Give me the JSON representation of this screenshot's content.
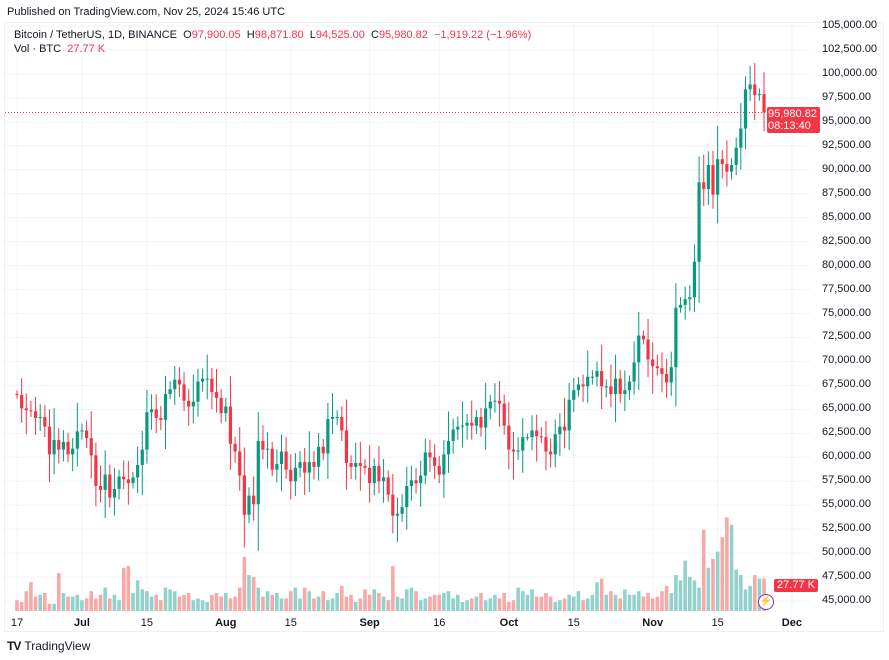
{
  "published": "Published on TradingView.com, Nov 25, 2024 15:46 UTC",
  "legend": {
    "symbol": "Bitcoin / TetherUS, 1D, BINANCE",
    "o_label": "O",
    "o": "97,900.05",
    "h_label": "H",
    "h": "98,871.80",
    "l_label": "L",
    "l": "94,525.00",
    "c_label": "C",
    "c": "95,980.82",
    "change": "−1,919.22 (−1.96%)",
    "vol_label": "Vol · BTC",
    "vol": "27.77 K"
  },
  "price_tag": {
    "price": "95,980.82",
    "countdown": "08:13:40"
  },
  "vol_tag": "27.77 K",
  "brand": "TradingView",
  "colors": {
    "up": "#089981",
    "down": "#f23645",
    "vol_up": "#92d2cc",
    "vol_down": "#f7a9a7",
    "grid": "#f0f3fa"
  },
  "chart_data": {
    "type": "candlestick",
    "symbol": "BTCUSDT",
    "start_date": "2024-06-17",
    "first_open": 66600,
    "closes": [
      66500,
      65100,
      64900,
      64800,
      64100,
      64200,
      63200,
      60300,
      61800,
      60800,
      61600,
      60300,
      60900,
      62700,
      62800,
      62000,
      60200,
      57000,
      56600,
      58200,
      55800,
      56700,
      58000,
      57700,
      57300,
      57900,
      59200,
      60800,
      64700,
      65000,
      64100,
      63900,
      66600,
      67100,
      68100,
      67600,
      65900,
      65300,
      65800,
      67900,
      68200,
      68200,
      66800,
      66200,
      64600,
      65300,
      61400,
      60600,
      58100,
      54000,
      56000,
      55100,
      61700,
      60800,
      60900,
      58700,
      59300,
      60600,
      58700,
      57500,
      58900,
      59500,
      58400,
      59500,
      59000,
      61100,
      60400,
      64000,
      64200,
      64200,
      62800,
      59400,
      59000,
      59400,
      59100,
      58900,
      57300,
      59100,
      57500,
      57900,
      56100,
      53900,
      54100,
      54800,
      57000,
      57600,
      57300,
      58100,
      60500,
      60000,
      59100,
      58200,
      60300,
      61700,
      62900,
      63200,
      63300,
      63600,
      63300,
      64200,
      63100,
      65100,
      65800,
      65900,
      65600,
      63300,
      60800,
      60600,
      60700,
      62100,
      62100,
      62800,
      62200,
      62100,
      60600,
      60300,
      62400,
      63200,
      62800,
      66000,
      67000,
      67600,
      67400,
      68400,
      68400,
      69000,
      67400,
      67400,
      66600,
      68200,
      66600,
      67000,
      67900,
      69900,
      72700,
      72300,
      70200,
      69500,
      69300,
      68700,
      67800,
      69400,
      75600,
      75900,
      76500,
      76700,
      80400,
      88700,
      88000,
      90500,
      87400,
      91100,
      90600,
      89800,
      90500,
      92300,
      94300,
      98400,
      98900,
      97800,
      97900,
      95980.82
    ],
    "volumes_k": [
      12,
      10,
      22,
      32,
      16,
      18,
      20,
      8,
      8,
      42,
      20,
      16,
      16,
      18,
      12,
      14,
      22,
      14,
      18,
      26,
      14,
      18,
      12,
      48,
      50,
      20,
      34,
      24,
      22,
      16,
      18,
      12,
      26,
      24,
      22,
      16,
      18,
      20,
      12,
      14,
      12,
      10,
      18,
      20,
      16,
      20,
      14,
      16,
      26,
      60,
      40,
      38,
      26,
      16,
      22,
      18,
      20,
      14,
      14,
      22,
      26,
      14,
      26,
      22,
      14,
      16,
      22,
      12,
      14,
      20,
      28,
      16,
      18,
      10,
      14,
      24,
      18,
      24,
      20,
      16,
      12,
      50,
      16,
      14,
      24,
      26,
      22,
      12,
      14,
      16,
      18,
      18,
      20,
      22,
      14,
      18,
      10,
      12,
      14,
      16,
      20,
      12,
      14,
      18,
      14,
      20,
      10,
      12,
      26,
      22,
      18,
      24,
      16,
      16,
      20,
      16,
      10,
      12,
      14,
      18,
      16,
      22,
      12,
      14,
      18,
      32,
      36,
      18,
      22,
      18,
      14,
      24,
      18,
      18,
      22,
      16,
      20,
      14,
      16,
      22,
      28,
      20,
      40,
      34,
      56,
      38,
      34,
      26,
      90,
      48,
      58,
      66,
      82,
      104,
      96,
      46,
      40,
      24,
      28,
      40,
      36,
      36,
      54,
      42,
      26,
      27.77
    ],
    "y_ticks": [
      "105,000.00",
      "102,500.00",
      "100,000.00",
      "97,500.00",
      "95,000.00",
      "92,500.00",
      "90,000.00",
      "87,500.00",
      "85,000.00",
      "82,500.00",
      "80,000.00",
      "77,500.00",
      "75,000.00",
      "72,500.00",
      "70,000.00",
      "67,500.00",
      "65,000.00",
      "62,500.00",
      "60,000.00",
      "57,500.00",
      "55,000.00",
      "52,500.00",
      "50,000.00",
      "47,500.00",
      "45,000.00"
    ],
    "ylim": [
      45000,
      105000
    ],
    "x_ticks": [
      {
        "label": "17",
        "date": "2024-06-17",
        "bold": false
      },
      {
        "label": "Jul",
        "date": "2024-07-01",
        "bold": true
      },
      {
        "label": "15",
        "date": "2024-07-15",
        "bold": false
      },
      {
        "label": "Aug",
        "date": "2024-08-01",
        "bold": true
      },
      {
        "label": "15",
        "date": "2024-08-15",
        "bold": false
      },
      {
        "label": "Sep",
        "date": "2024-09-01",
        "bold": true
      },
      {
        "label": "16",
        "date": "2024-09-16",
        "bold": false
      },
      {
        "label": "Oct",
        "date": "2024-10-01",
        "bold": true
      },
      {
        "label": "15",
        "date": "2024-10-15",
        "bold": false
      },
      {
        "label": "Nov",
        "date": "2024-11-01",
        "bold": true
      },
      {
        "label": "15",
        "date": "2024-11-15",
        "bold": false
      },
      {
        "label": "Dec",
        "date": "2024-12-01",
        "bold": true
      }
    ]
  }
}
